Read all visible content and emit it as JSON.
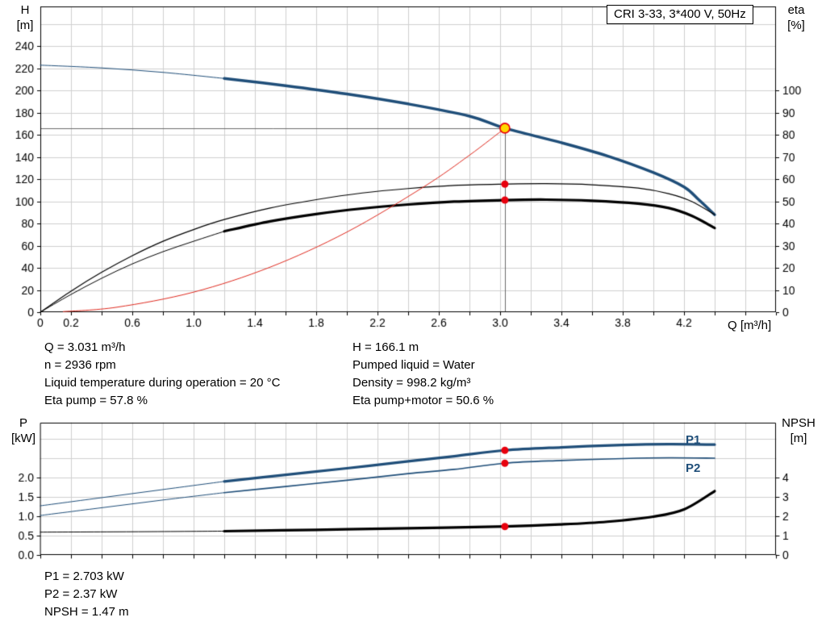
{
  "title_box": "CRI 3-33, 3*400 V, 50Hz",
  "axes": {
    "h": [
      "H",
      "[m]"
    ],
    "eta": [
      "eta",
      "[%]"
    ],
    "q": "Q [m³/h]",
    "p": [
      "P",
      "[kW]"
    ],
    "npsh": [
      "NPSH",
      "[m]"
    ]
  },
  "series_labels": {
    "p1": "P1",
    "p2": "P2"
  },
  "details": {
    "left": [
      "Q = 3.031 m³/h",
      "n = 2936 rpm",
      "Liquid temperature during operation = 20 °C",
      "Eta pump = 57.8 %"
    ],
    "right": [
      "H = 166.1 m",
      "Pumped liquid = Water",
      "Density = 998.2 kg/m³",
      "Eta pump+motor = 50.6 %"
    ],
    "bottom": [
      "P1 = 2.703 kW",
      "P2 = 2.37 kW",
      "NPSH = 1.47 m"
    ]
  },
  "colors": {
    "curve_blue": "#1f4e79",
    "curve_black": "#000000",
    "curve_red": "#e02b20",
    "marker_red": "#e8000d",
    "marker_yellow": "#ffd800",
    "grid": "#cfcfcf",
    "frame": "#000000",
    "crosshair": "#6b6b6b",
    "text": "#000000"
  },
  "chart_data": [
    {
      "id": "qh",
      "type": "line",
      "title": "CRI 3-33, 3*400 V, 50Hz",
      "x": {
        "label": "Q [m³/h]",
        "min": 0,
        "max": 4.8,
        "grid_step": 0.2,
        "tick_labels": [
          "0",
          "0.2",
          "0.6",
          "1.0",
          "1.4",
          "1.8",
          "2.2",
          "2.6",
          "3.0",
          "3.4",
          "3.8",
          "4.2"
        ]
      },
      "y_left": {
        "label": "H [m]",
        "min": 0,
        "max": 276,
        "grid_step": 20,
        "tick_labels": [
          "0",
          "20",
          "40",
          "60",
          "80",
          "100",
          "120",
          "140",
          "160",
          "180",
          "200",
          "220",
          "240"
        ]
      },
      "y_right": {
        "label": "eta [%]",
        "min": 0,
        "max": 138,
        "tick_labels": [
          "0",
          "10",
          "20",
          "30",
          "40",
          "50",
          "60",
          "70",
          "80",
          "90",
          "100"
        ]
      },
      "duty_point": {
        "q": 3.031,
        "h": 166.1,
        "eta_pump": 57.8,
        "eta_pump_motor": 50.6
      },
      "crosshair": {
        "x": 3.031,
        "y": 166.1,
        "axis": "left"
      },
      "series": [
        {
          "name": "qh-curve-extension",
          "color": "#1f4e79",
          "width": 1,
          "axis": "left",
          "points": [
            [
              0,
              223
            ],
            [
              0.4,
              220.5
            ],
            [
              0.8,
              216.5
            ],
            [
              1.2,
              211
            ]
          ]
        },
        {
          "name": "qh-curve",
          "color": "#1f4e79",
          "width": 3.5,
          "axis": "left",
          "points": [
            [
              1.2,
              211
            ],
            [
              1.6,
              204.5
            ],
            [
              2.0,
              197
            ],
            [
              2.4,
              188
            ],
            [
              2.8,
              177
            ],
            [
              3.031,
              166.1
            ],
            [
              3.4,
              153
            ],
            [
              3.7,
              141
            ],
            [
              4.0,
              126
            ],
            [
              4.2,
              113
            ],
            [
              4.3,
              101
            ],
            [
              4.4,
              88
            ]
          ]
        },
        {
          "name": "eta-pump-curve",
          "color": "#000000",
          "width": 1.2,
          "axis": "right",
          "points": [
            [
              0,
              0
            ],
            [
              0.2,
              9.5
            ],
            [
              0.4,
              18
            ],
            [
              0.6,
              25.5
            ],
            [
              0.8,
              32
            ],
            [
              1.0,
              37.3
            ],
            [
              1.2,
              41.8
            ],
            [
              1.5,
              47
            ],
            [
              1.8,
              50.8
            ],
            [
              2.1,
              53.8
            ],
            [
              2.4,
              55.8
            ],
            [
              2.7,
              57.2
            ],
            [
              3.031,
              57.8
            ],
            [
              3.3,
              58
            ],
            [
              3.6,
              57.5
            ],
            [
              3.9,
              56
            ],
            [
              4.1,
              53.5
            ],
            [
              4.25,
              50
            ],
            [
              4.4,
              44
            ]
          ]
        },
        {
          "name": "eta-pump-motor-extension",
          "color": "#000000",
          "width": 1,
          "axis": "right",
          "points": [
            [
              0,
              0
            ],
            [
              0.2,
              8
            ],
            [
              0.4,
              15.3
            ],
            [
              0.6,
              21.8
            ],
            [
              0.8,
              27.3
            ],
            [
              1.0,
              32
            ],
            [
              1.2,
              36.5
            ]
          ]
        },
        {
          "name": "eta-pump-motor-curve",
          "color": "#000000",
          "width": 3.2,
          "axis": "right",
          "points": [
            [
              1.2,
              36.5
            ],
            [
              1.5,
              41
            ],
            [
              1.8,
              44.3
            ],
            [
              2.1,
              46.8
            ],
            [
              2.4,
              48.6
            ],
            [
              2.7,
              49.9
            ],
            [
              3.031,
              50.6
            ],
            [
              3.3,
              50.8
            ],
            [
              3.6,
              50.3
            ],
            [
              3.9,
              49
            ],
            [
              4.1,
              47
            ],
            [
              4.25,
              43.5
            ],
            [
              4.4,
              38
            ]
          ]
        },
        {
          "name": "system-curve",
          "color": "#e02b20",
          "width": 1,
          "axis": "left",
          "points": [
            [
              0.15,
              0.5
            ],
            [
              0.5,
              4.5
            ],
            [
              1.0,
              18.1
            ],
            [
              1.5,
              40.7
            ],
            [
              2.0,
              72.3
            ],
            [
              2.5,
              113
            ],
            [
              2.8,
              141.7
            ],
            [
              3.031,
              166.1
            ]
          ]
        }
      ],
      "markers": [
        {
          "name": "duty-point",
          "x": 3.031,
          "y": 166.1,
          "axis": "left",
          "fill": "#ffd800",
          "stroke": "#e8000d",
          "stroke_width": 1.6,
          "r": 6
        },
        {
          "name": "eta-pump-point",
          "x": 3.031,
          "y": 57.8,
          "axis": "right",
          "fill": "#e8000d",
          "r": 4.5
        },
        {
          "name": "eta-pump-motor-point",
          "x": 3.031,
          "y": 50.6,
          "axis": "right",
          "fill": "#e8000d",
          "r": 4.5
        }
      ]
    },
    {
      "id": "power",
      "type": "line",
      "x": {
        "label": "",
        "min": 0,
        "max": 4.8,
        "grid_step": 0.2,
        "tick_labels": []
      },
      "y_left": {
        "label": "P [kW]",
        "min": 0,
        "max": 3.4167,
        "grid_step": 0.5,
        "tick_labels": [
          "0.0",
          "0.5",
          "1.0",
          "1.5",
          "2.0"
        ]
      },
      "y_right": {
        "label": "NPSH [m]",
        "min": 0,
        "max": 6.8333,
        "tick_labels": [
          "0",
          "1",
          "2",
          "3",
          "4"
        ]
      },
      "duty_values": {
        "p1_kw": 2.703,
        "p2_kw": 2.37,
        "npsh_m": 1.47
      },
      "series": [
        {
          "name": "p1-extension",
          "color": "#1f4e79",
          "width": 1,
          "axis": "left",
          "points": [
            [
              0,
              1.27
            ],
            [
              0.4,
              1.48
            ],
            [
              0.8,
              1.69
            ],
            [
              1.2,
              1.9
            ]
          ]
        },
        {
          "name": "p1-curve",
          "color": "#1f4e79",
          "width": 3.2,
          "axis": "left",
          "points": [
            [
              1.2,
              1.9
            ],
            [
              1.6,
              2.07
            ],
            [
              2.0,
              2.24
            ],
            [
              2.4,
              2.42
            ],
            [
              2.7,
              2.55
            ],
            [
              3.031,
              2.703
            ],
            [
              3.4,
              2.78
            ],
            [
              3.8,
              2.84
            ],
            [
              4.1,
              2.86
            ],
            [
              4.4,
              2.85
            ]
          ]
        },
        {
          "name": "p2-extension",
          "color": "#1f4e79",
          "width": 1,
          "axis": "left",
          "points": [
            [
              0,
              1.02
            ],
            [
              0.4,
              1.22
            ],
            [
              0.8,
              1.42
            ],
            [
              1.2,
              1.61
            ]
          ]
        },
        {
          "name": "p2-curve",
          "color": "#1f4e79",
          "width": 1.7,
          "axis": "left",
          "points": [
            [
              1.2,
              1.61
            ],
            [
              1.6,
              1.77
            ],
            [
              2.0,
              1.93
            ],
            [
              2.4,
              2.1
            ],
            [
              2.7,
              2.21
            ],
            [
              3.031,
              2.37
            ],
            [
              3.4,
              2.44
            ],
            [
              3.8,
              2.49
            ],
            [
              4.1,
              2.51
            ],
            [
              4.4,
              2.5
            ]
          ]
        },
        {
          "name": "npsh-extension",
          "color": "#000000",
          "width": 1,
          "axis": "right",
          "points": [
            [
              0,
              1.18
            ],
            [
              0.6,
              1.2
            ],
            [
              1.2,
              1.23
            ]
          ]
        },
        {
          "name": "npsh-curve",
          "color": "#000000",
          "width": 3.2,
          "axis": "right",
          "points": [
            [
              1.2,
              1.23
            ],
            [
              1.8,
              1.3
            ],
            [
              2.4,
              1.38
            ],
            [
              3.031,
              1.47
            ],
            [
              3.4,
              1.58
            ],
            [
              3.7,
              1.72
            ],
            [
              4.0,
              1.98
            ],
            [
              4.2,
              2.35
            ],
            [
              4.4,
              3.3
            ]
          ]
        }
      ],
      "markers": [
        {
          "name": "p1-point",
          "x": 3.031,
          "y": 2.703,
          "axis": "left",
          "fill": "#e8000d",
          "r": 4.5
        },
        {
          "name": "p2-point",
          "x": 3.031,
          "y": 2.37,
          "axis": "left",
          "fill": "#e8000d",
          "r": 4.5
        },
        {
          "name": "npsh-point",
          "x": 3.031,
          "y": 1.47,
          "axis": "right",
          "fill": "#e8000d",
          "r": 4.5
        }
      ]
    }
  ]
}
